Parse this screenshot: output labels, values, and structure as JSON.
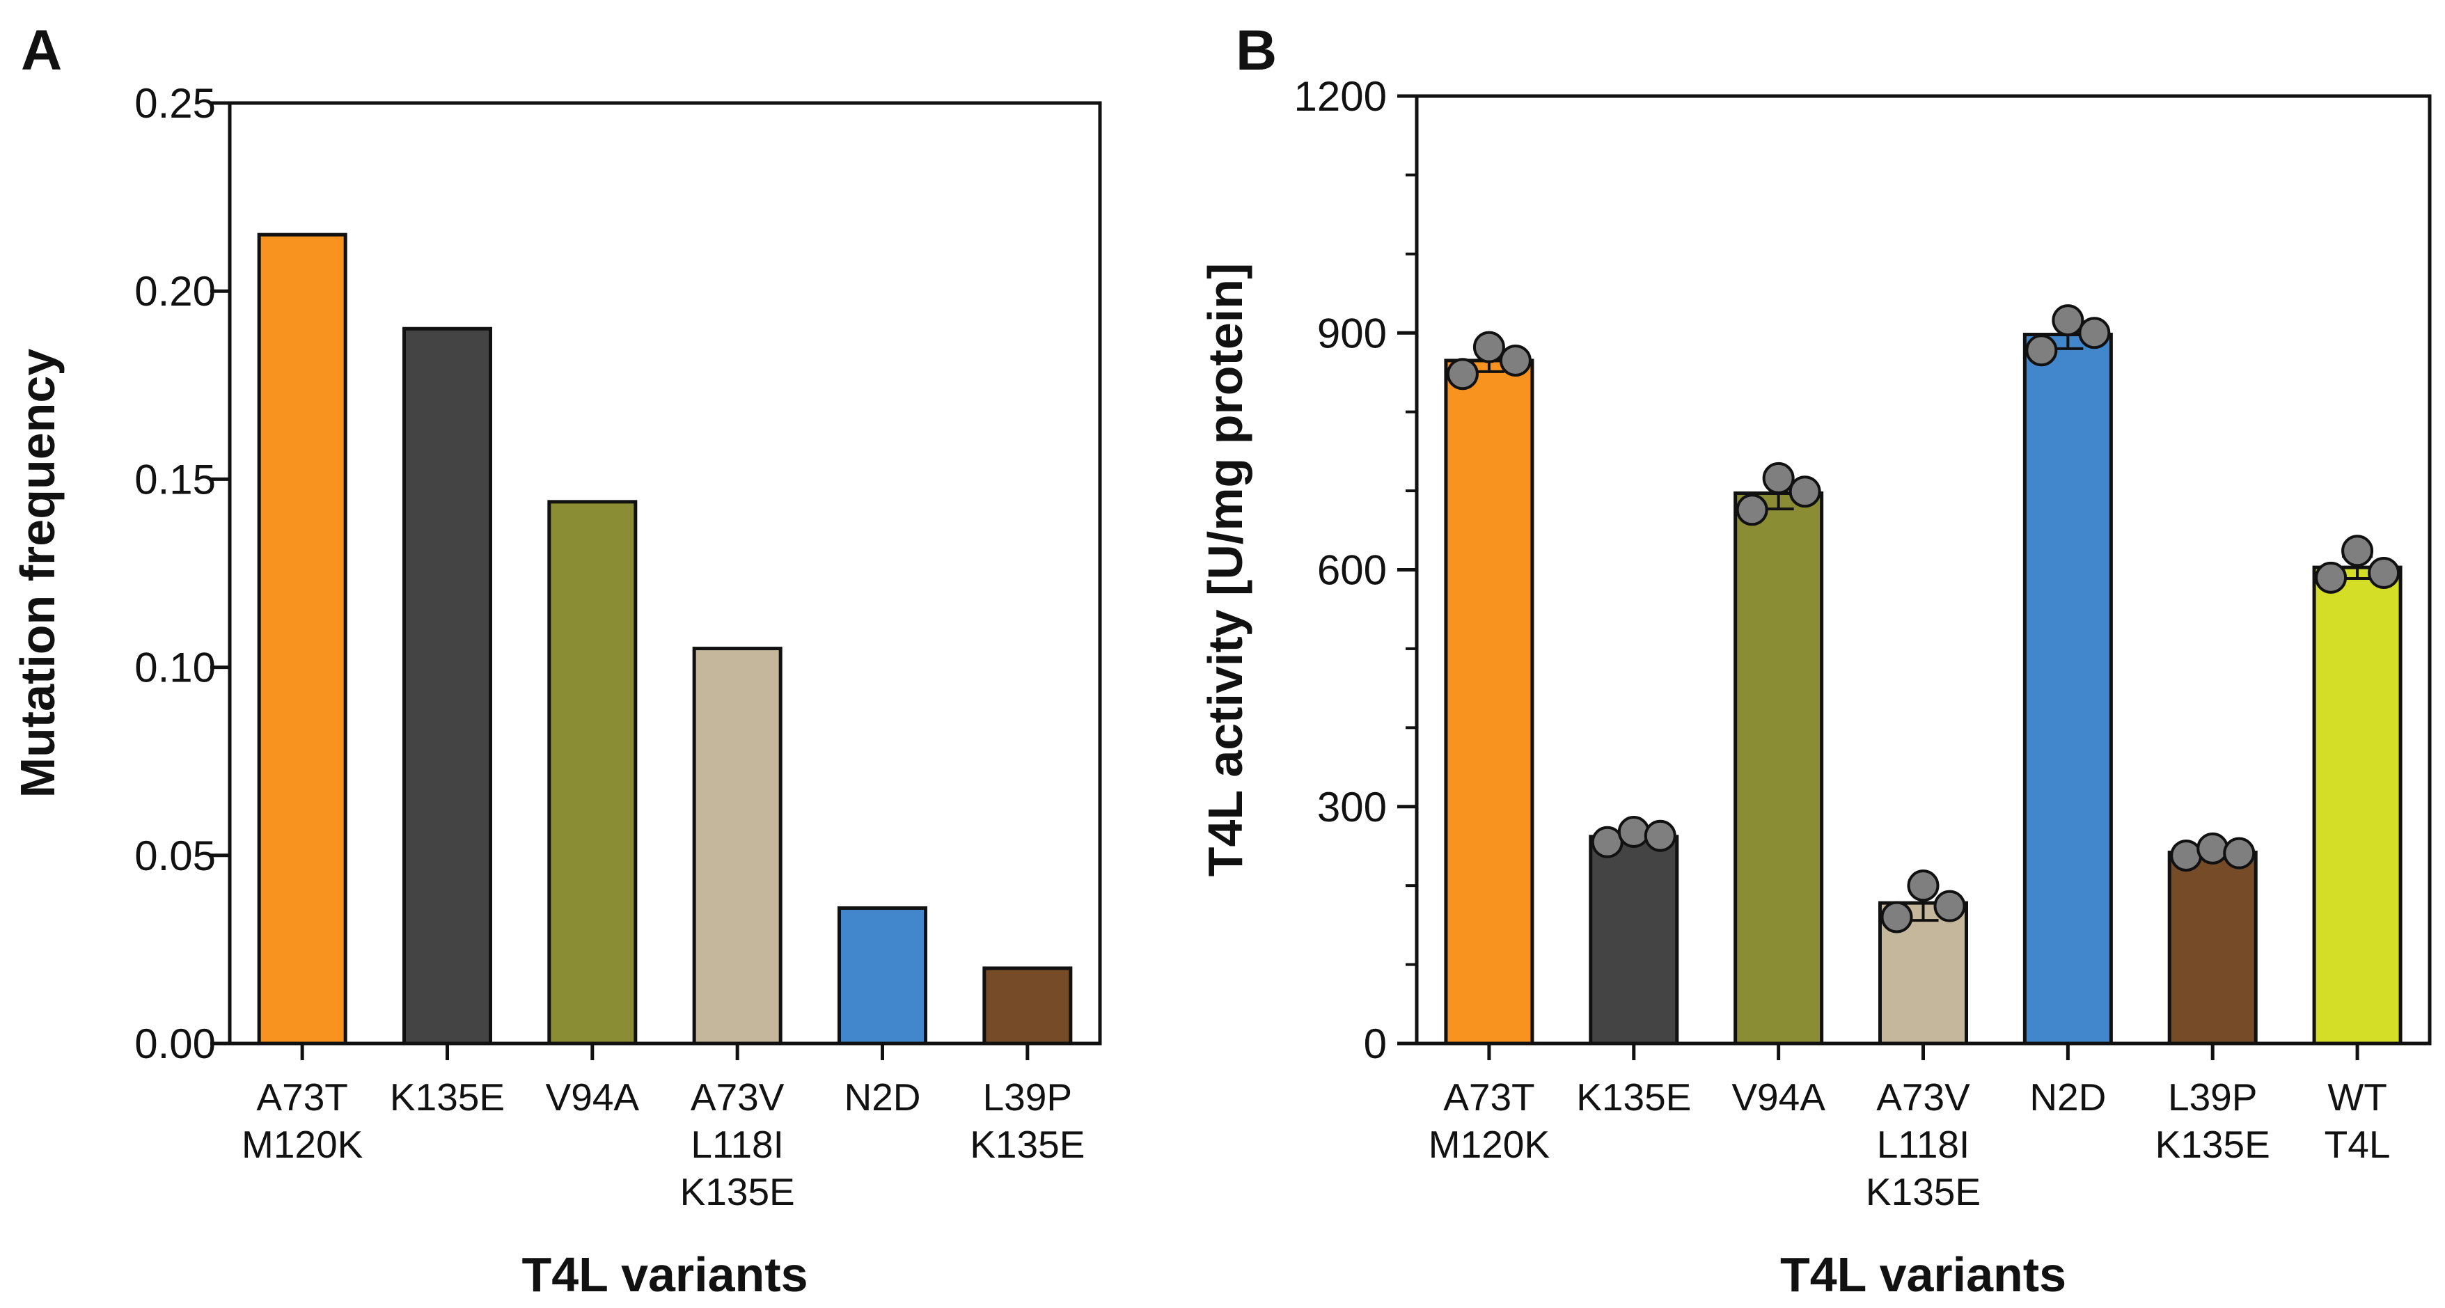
{
  "chart_data": [
    {
      "panel": "A",
      "type": "bar",
      "categories": [
        [
          "A73T",
          "M120K"
        ],
        [
          "K135E"
        ],
        [
          "V94A"
        ],
        [
          "A73V",
          "L118I",
          "K135E"
        ],
        [
          "N2D"
        ],
        [
          "L39P",
          "K135E"
        ]
      ],
      "values": [
        0.215,
        0.19,
        0.144,
        0.105,
        0.036,
        0.02
      ],
      "colors": [
        "#f7931e",
        "#444444",
        "#8a8d34",
        "#c4b79c",
        "#4287cb",
        "#764b28"
      ],
      "xlabel": "T4L variants",
      "ylabel": "Mutation frequency",
      "ylim": [
        0,
        0.25
      ],
      "yticks": [
        "0.00",
        "0.05",
        "0.10",
        "0.15",
        "0.20",
        "0.25"
      ],
      "ytick_values": [
        0,
        0.05,
        0.1,
        0.15,
        0.2,
        0.25
      ],
      "grid": false,
      "legend": "none"
    },
    {
      "panel": "B",
      "type": "bar",
      "categories": [
        [
          "A73T",
          "M120K"
        ],
        [
          "K135E"
        ],
        [
          "V94A"
        ],
        [
          "A73V",
          "L118I",
          "K135E"
        ],
        [
          "N2D"
        ],
        [
          "L39P",
          "K135E"
        ],
        [
          "WT",
          "T4L"
        ]
      ],
      "values": [
        865,
        262,
        697,
        178,
        898,
        242,
        603
      ],
      "errors": [
        14,
        5,
        20,
        22,
        18,
        4,
        14
      ],
      "points": [
        [
          848,
          882,
          865
        ],
        [
          255,
          268,
          263
        ],
        [
          676,
          716,
          699
        ],
        [
          160,
          200,
          174
        ],
        [
          878,
          916,
          900
        ],
        [
          238,
          247,
          241
        ],
        [
          590,
          624,
          596
        ]
      ],
      "colors": [
        "#f7931e",
        "#444444",
        "#8a8d34",
        "#c4b79c",
        "#4287cb",
        "#764b28",
        "#d5de26"
      ],
      "xlabel": "T4L variants",
      "ylabel": "T4L activity [U/mg protein]",
      "ylim": [
        0,
        1200
      ],
      "yticks": [
        "0",
        "300",
        "600",
        "900",
        "1200"
      ],
      "ytick_values": [
        0,
        300,
        600,
        900,
        1200
      ],
      "minor_step": 100,
      "grid": false,
      "legend": "none"
    }
  ]
}
